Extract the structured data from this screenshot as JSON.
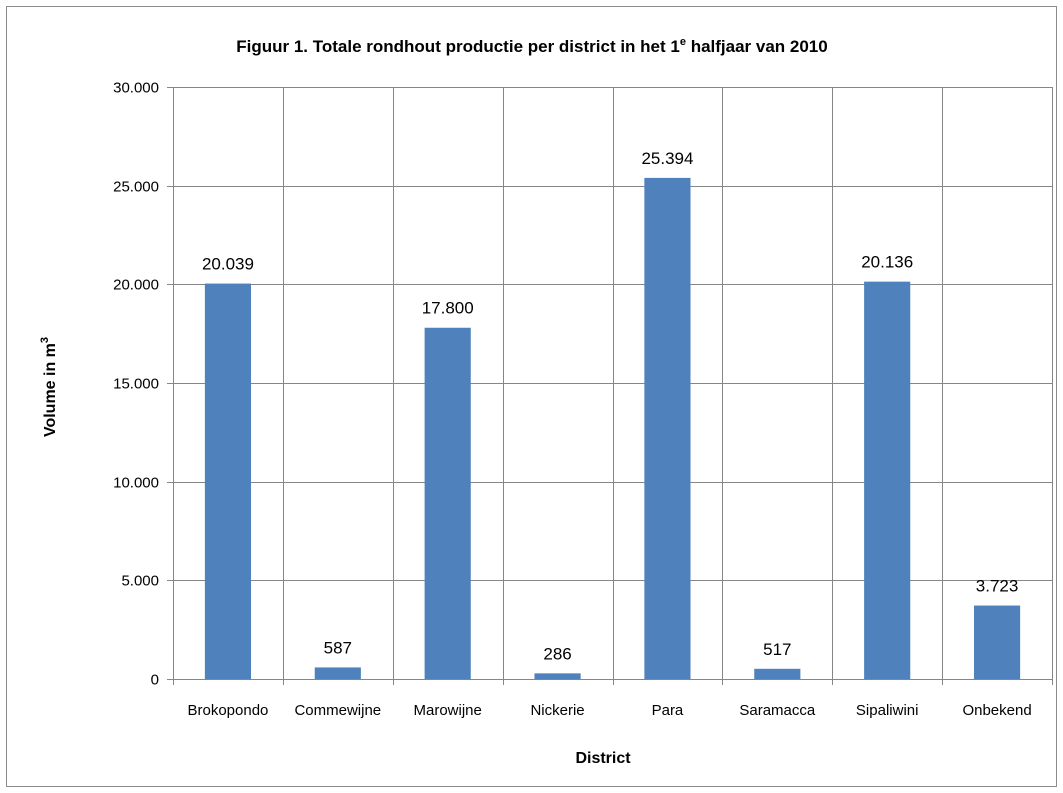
{
  "chart_data": {
    "type": "bar",
    "title": "Figuur 1. Totale rondhout productie per district in het 1",
    "title_superscript": "e",
    "title_suffix": " halfjaar van 2010",
    "xlabel": "District",
    "ylabel": "Volume in m",
    "ylabel_superscript": "3",
    "categories": [
      "Brokopondo",
      "Commewijne",
      "Marowijne",
      "Nickerie",
      "Para",
      "Saramacca",
      "Sipaliwini",
      "Onbekend"
    ],
    "values": [
      20039,
      587,
      17800,
      286,
      25394,
      517,
      20136,
      3723
    ],
    "data_labels": [
      "20.039",
      "587",
      "17.800",
      "286",
      "25.394",
      "517",
      "20.136",
      "3.723"
    ],
    "ylim": [
      0,
      30000
    ],
    "y_ticks": [
      0,
      5000,
      10000,
      15000,
      20000,
      25000,
      30000
    ],
    "y_tick_labels": [
      "0",
      "5.000",
      "10.000",
      "15.000",
      "20.000",
      "25.000",
      "30.000"
    ],
    "grid": true,
    "legend": "none",
    "bar_color": "#4f81bd",
    "grid_color": "#868686"
  }
}
